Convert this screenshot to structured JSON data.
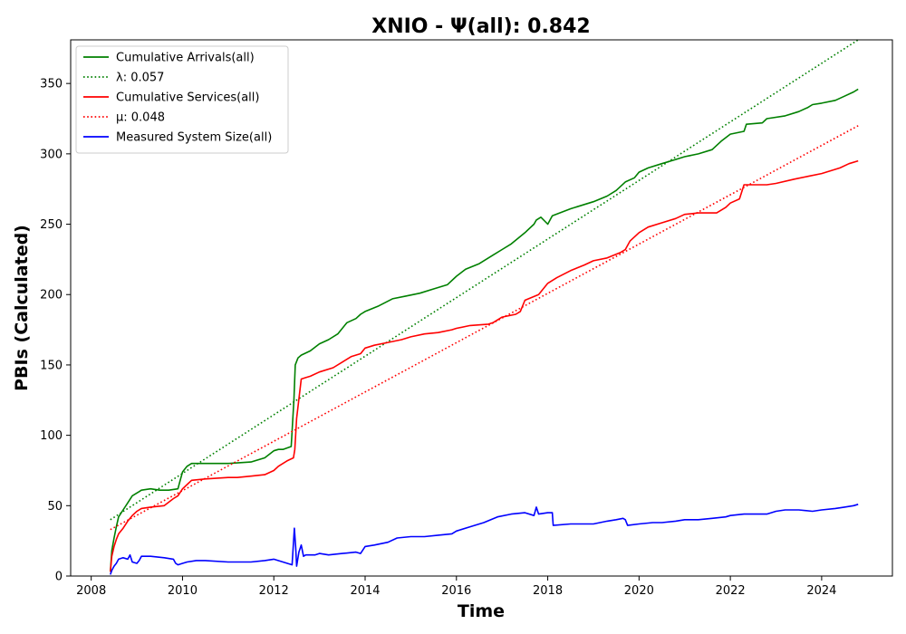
{
  "chart_data": {
    "type": "line",
    "title": "XNIO -  Ψ(all): 0.842",
    "xlabel": "Time",
    "ylabel": "PBIs (Calculated)",
    "xlim": [
      2007.55,
      2025.55
    ],
    "ylim": [
      0,
      381
    ],
    "xticks": [
      2008,
      2010,
      2012,
      2014,
      2016,
      2018,
      2020,
      2022,
      2024
    ],
    "yticks": [
      0,
      50,
      100,
      150,
      200,
      250,
      300,
      350
    ],
    "grid": false,
    "legend_position": "upper-left",
    "series": [
      {
        "name": "Cumulative Arrivals(all)",
        "style": "solid",
        "color": "#008000",
        "x": [
          2008.42,
          2008.45,
          2008.5,
          2008.55,
          2008.6,
          2008.7,
          2008.8,
          2008.9,
          2009.0,
          2009.05,
          2009.1,
          2009.3,
          2009.5,
          2009.7,
          2009.9,
          2009.95,
          2010.0,
          2010.1,
          2010.2,
          2010.4,
          2010.8,
          2011.0,
          2011.5,
          2011.8,
          2012.0,
          2012.1,
          2012.2,
          2012.38,
          2012.44,
          2012.47,
          2012.53,
          2012.6,
          2012.8,
          2013.0,
          2013.2,
          2013.4,
          2013.6,
          2013.8,
          2013.9,
          2014.0,
          2014.3,
          2014.6,
          2014.9,
          2015.2,
          2015.5,
          2015.8,
          2016.0,
          2016.2,
          2016.5,
          2016.8,
          2017.0,
          2017.2,
          2017.5,
          2017.7,
          2017.75,
          2017.85,
          2018.0,
          2018.1,
          2018.5,
          2019.0,
          2019.3,
          2019.5,
          2019.7,
          2019.9,
          2020.0,
          2020.2,
          2020.5,
          2020.8,
          2021.0,
          2021.3,
          2021.6,
          2021.8,
          2022.0,
          2022.3,
          2022.35,
          2022.7,
          2022.8,
          2023.2,
          2023.5,
          2023.7,
          2023.8,
          2024.0,
          2024.3,
          2024.5,
          2024.7,
          2024.8
        ],
        "y": [
          3,
          18,
          27,
          35,
          42,
          47,
          52,
          57,
          59,
          60,
          61,
          62,
          61,
          61,
          62,
          68,
          74,
          78,
          80,
          80,
          80,
          80,
          81,
          84,
          89,
          90,
          90,
          92,
          125,
          150,
          155,
          157,
          160,
          165,
          168,
          172,
          180,
          183,
          186,
          188,
          192,
          197,
          199,
          201,
          204,
          207,
          213,
          218,
          222,
          228,
          232,
          236,
          244,
          250,
          253,
          255,
          250,
          256,
          261,
          266,
          270,
          274,
          280,
          283,
          287,
          290,
          293,
          296,
          298,
          300,
          303,
          309,
          314,
          316,
          321,
          322,
          325,
          327,
          330,
          333,
          335,
          336,
          338,
          341,
          344,
          346
        ]
      },
      {
        "name": "λ: 0.057",
        "style": "dotted",
        "color": "#008000",
        "x": [
          2008.42,
          2024.8
        ],
        "y": [
          40,
          381
        ]
      },
      {
        "name": "Cumulative Services(all)",
        "style": "solid",
        "color": "#ff0000",
        "x": [
          2008.42,
          2008.45,
          2008.5,
          2008.55,
          2008.6,
          2008.7,
          2008.8,
          2008.9,
          2009.0,
          2009.1,
          2009.3,
          2009.6,
          2009.8,
          2009.9,
          2010.0,
          2010.1,
          2010.2,
          2010.5,
          2011.0,
          2011.2,
          2011.5,
          2011.8,
          2012.0,
          2012.1,
          2012.3,
          2012.43,
          2012.46,
          2012.5,
          2012.6,
          2012.7,
          2012.8,
          2013.0,
          2013.3,
          2013.5,
          2013.7,
          2013.9,
          2014.0,
          2014.2,
          2014.5,
          2014.8,
          2015.0,
          2015.3,
          2015.6,
          2015.9,
          2016.0,
          2016.3,
          2016.7,
          2016.8,
          2017.0,
          2017.3,
          2017.4,
          2017.5,
          2017.8,
          2018.0,
          2018.2,
          2018.5,
          2018.8,
          2019.0,
          2019.3,
          2019.6,
          2019.7,
          2019.8,
          2020.0,
          2020.2,
          2020.5,
          2020.8,
          2021.0,
          2021.3,
          2021.7,
          2021.9,
          2022.0,
          2022.2,
          2022.3,
          2022.8,
          2023.0,
          2023.4,
          2023.7,
          2024.0,
          2024.2,
          2024.4,
          2024.6,
          2024.8
        ],
        "y": [
          3,
          14,
          21,
          26,
          30,
          34,
          39,
          43,
          46,
          48,
          49,
          50,
          55,
          57,
          62,
          65,
          68,
          69,
          70,
          70,
          71,
          72,
          75,
          78,
          82,
          84,
          90,
          112,
          140,
          141,
          142,
          145,
          148,
          152,
          156,
          158,
          162,
          164,
          166,
          168,
          170,
          172,
          173,
          175,
          176,
          178,
          179,
          180,
          184,
          186,
          188,
          196,
          200,
          208,
          212,
          217,
          221,
          224,
          226,
          230,
          232,
          238,
          244,
          248,
          251,
          254,
          257,
          258,
          258,
          262,
          265,
          268,
          278,
          278,
          279,
          282,
          284,
          286,
          288,
          290,
          293,
          295
        ]
      },
      {
        "name": "μ: 0.048",
        "style": "dotted",
        "color": "#ff0000",
        "x": [
          2008.42,
          2024.8
        ],
        "y": [
          33,
          320
        ]
      },
      {
        "name": "Measured System Size(all)",
        "style": "solid",
        "color": "#0000ff",
        "x": [
          2008.42,
          2008.45,
          2008.5,
          2008.55,
          2008.6,
          2008.7,
          2008.8,
          2008.85,
          2008.9,
          2009.0,
          2009.05,
          2009.1,
          2009.3,
          2009.6,
          2009.8,
          2009.85,
          2009.9,
          2010.0,
          2010.1,
          2010.3,
          2010.5,
          2011.0,
          2011.5,
          2011.8,
          2012.0,
          2012.2,
          2012.4,
          2012.45,
          2012.48,
          2012.5,
          2012.55,
          2012.6,
          2012.65,
          2012.7,
          2012.9,
          2013.0,
          2013.2,
          2013.5,
          2013.8,
          2013.9,
          2014.0,
          2014.2,
          2014.5,
          2014.7,
          2015.0,
          2015.3,
          2015.6,
          2015.9,
          2016.0,
          2016.3,
          2016.6,
          2016.9,
          2017.2,
          2017.5,
          2017.7,
          2017.75,
          2017.8,
          2018.0,
          2018.1,
          2018.12,
          2018.5,
          2019.0,
          2019.3,
          2019.5,
          2019.65,
          2019.7,
          2019.75,
          2020.0,
          2020.3,
          2020.5,
          2020.8,
          2021.0,
          2021.3,
          2021.6,
          2021.9,
          2022.0,
          2022.3,
          2022.6,
          2022.8,
          2023.0,
          2023.2,
          2023.5,
          2023.8,
          2024.0,
          2024.3,
          2024.5,
          2024.7,
          2024.8
        ],
        "y": [
          1,
          4,
          7,
          9,
          12,
          13,
          12,
          15,
          10,
          9,
          11,
          14,
          14,
          13,
          12,
          9,
          8,
          9,
          10,
          11,
          11,
          10,
          10,
          11,
          12,
          10,
          8,
          34,
          20,
          7,
          17,
          22,
          14,
          15,
          15,
          16,
          15,
          16,
          17,
          16,
          21,
          22,
          24,
          27,
          28,
          28,
          29,
          30,
          32,
          35,
          38,
          42,
          44,
          45,
          43,
          49,
          44,
          45,
          45,
          36,
          37,
          37,
          39,
          40,
          41,
          40,
          36,
          37,
          38,
          38,
          39,
          40,
          40,
          41,
          42,
          43,
          44,
          44,
          44,
          46,
          47,
          47,
          46,
          47,
          48,
          49,
          50,
          51
        ]
      }
    ]
  }
}
